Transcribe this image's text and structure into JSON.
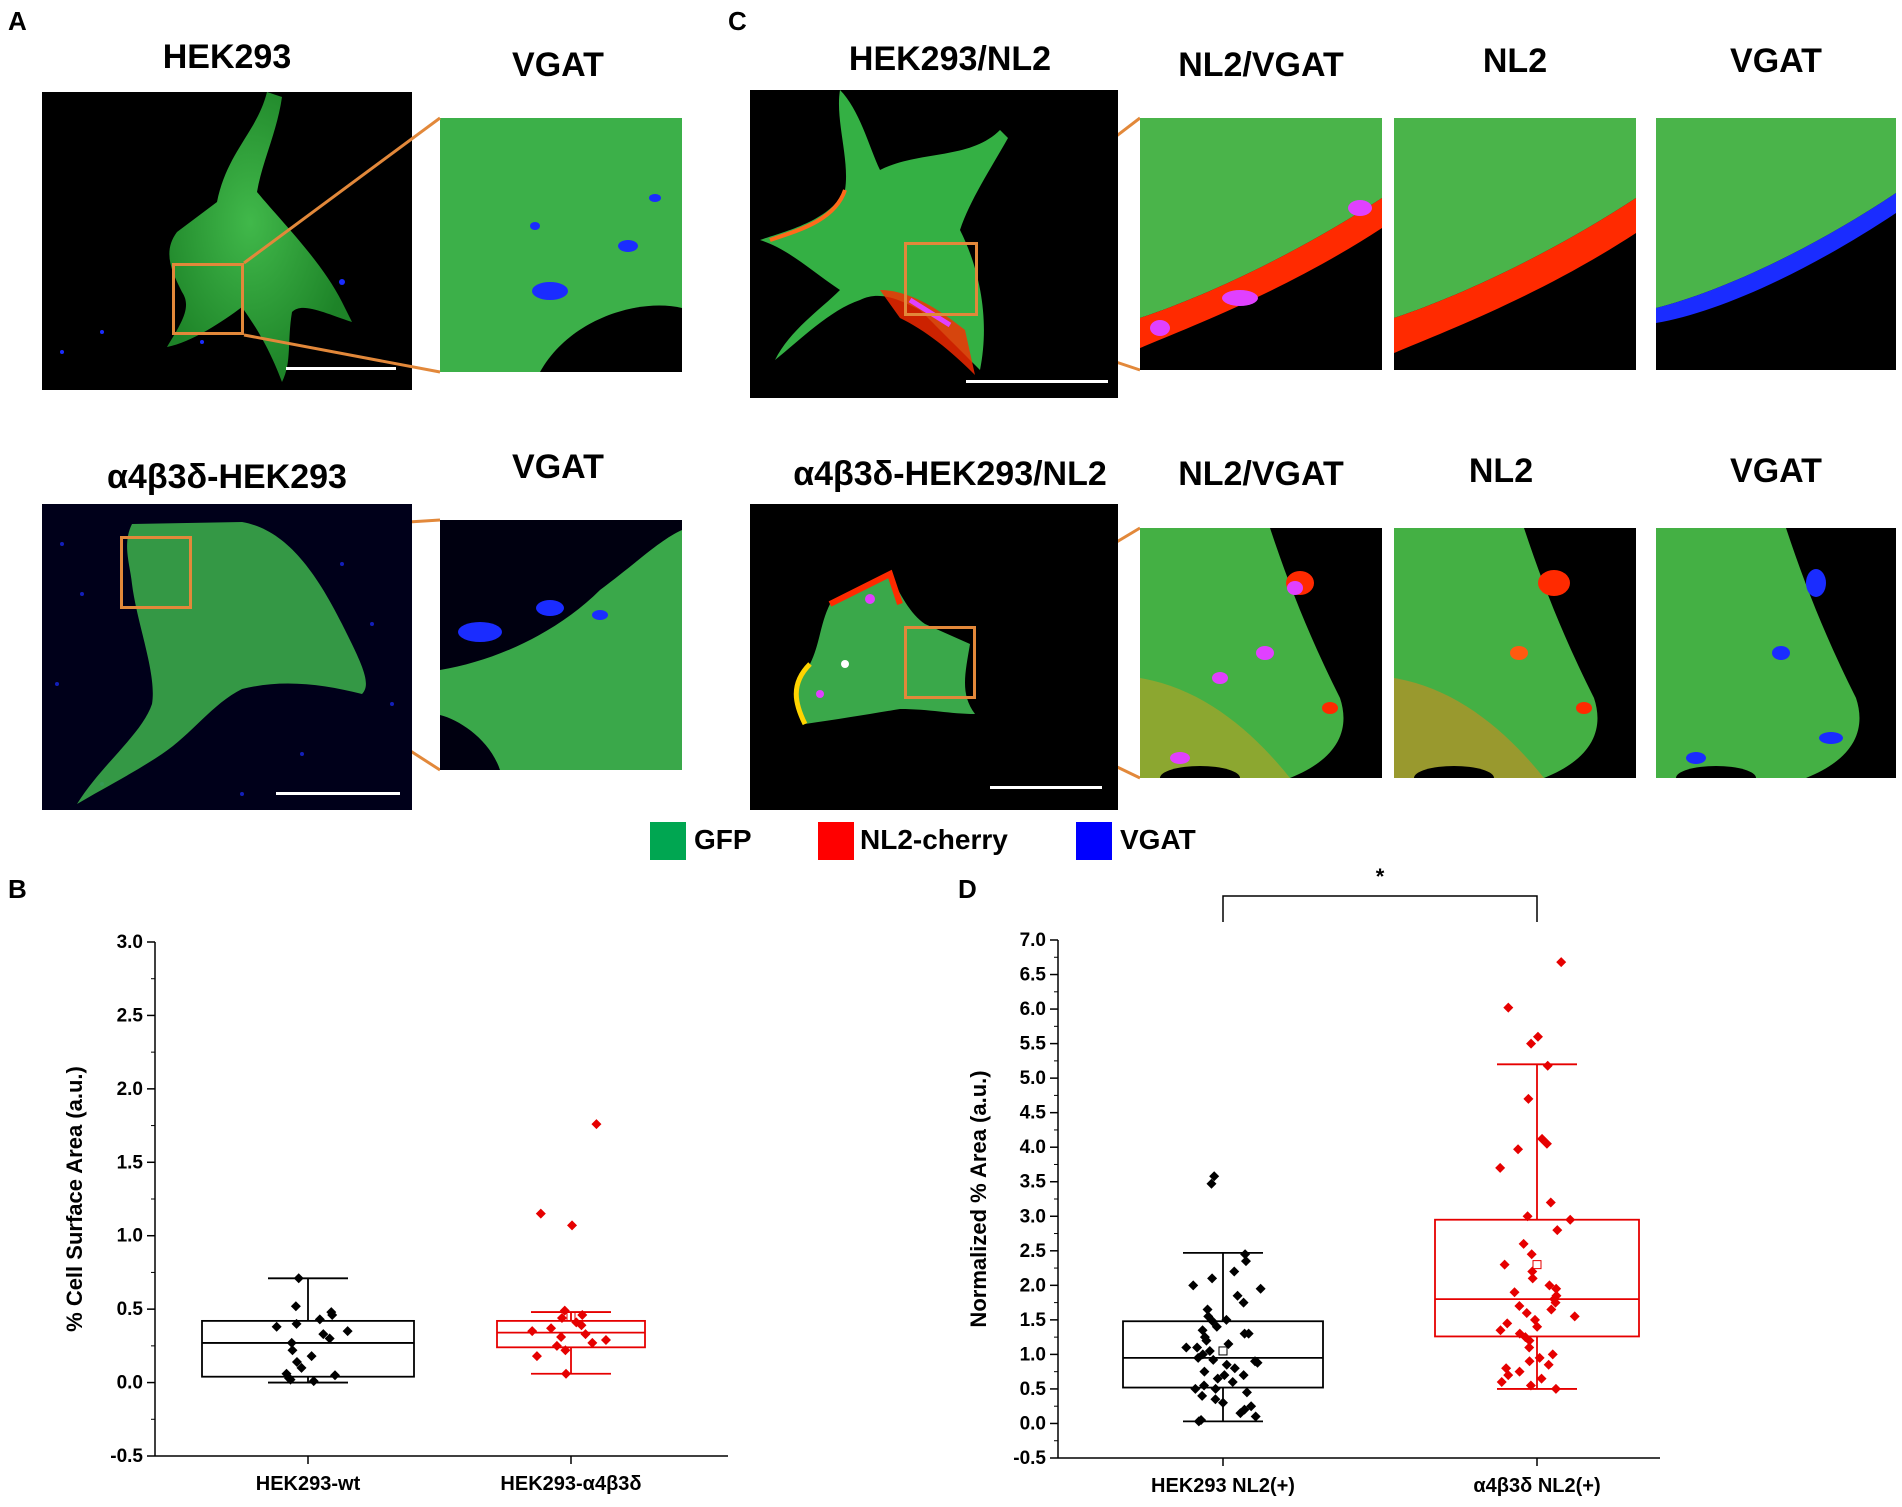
{
  "panels": {
    "A": {
      "label": "A",
      "top_title": "HEK293",
      "top_zoom_title": "VGAT",
      "bottom_title": "α4β3δ-HEK293",
      "bottom_zoom_title": "VGAT"
    },
    "C": {
      "label": "C",
      "top_title": "HEK293/NL2",
      "top_zoom_titles": [
        "NL2/VGAT",
        "NL2",
        "VGAT"
      ],
      "bottom_title": "α4β3δ-HEK293/NL2",
      "bottom_zoom_titles": [
        "NL2/VGAT",
        "NL2",
        "VGAT"
      ]
    },
    "B": {
      "label": "B"
    },
    "D": {
      "label": "D"
    }
  },
  "legend": [
    {
      "label": "GFP",
      "color": "#00a651"
    },
    {
      "label": "NL2-cherry",
      "color": "#ff0000"
    },
    {
      "label": "VGAT",
      "color": "#0000ff"
    }
  ],
  "colors": {
    "zoom_box": "#e2883a",
    "gfp": "#2fae3a",
    "nl2": "#ff2a00",
    "vgat": "#1a2cff",
    "series_black": "#000000",
    "series_red": "#e60000"
  },
  "chart_data": [
    {
      "id": "B",
      "type": "box",
      "ylabel": "% Cell Surface Area (a.u.)",
      "ylim": [
        -0.5,
        3.0
      ],
      "yticks": [
        "-0.5",
        "0.0",
        "0.5",
        "1.0",
        "1.5",
        "2.0",
        "2.5",
        "3.0"
      ],
      "categories": [
        "HEK293-wt",
        "HEK293-α4β3δ"
      ],
      "series": [
        {
          "color": "#000000",
          "box": {
            "whisker_low": 0.0,
            "q1": 0.04,
            "median": 0.27,
            "q3": 0.42,
            "whisker_high": 0.71
          },
          "points": [
            0.71,
            0.52,
            0.48,
            0.46,
            0.43,
            0.4,
            0.38,
            0.35,
            0.33,
            0.3,
            0.27,
            0.22,
            0.18,
            0.14,
            0.1,
            0.06,
            0.05,
            0.03,
            0.02,
            0.01
          ]
        },
        {
          "color": "#e60000",
          "box": {
            "whisker_low": 0.06,
            "q1": 0.24,
            "median": 0.34,
            "q3": 0.42,
            "whisker_high": 0.48
          },
          "points": [
            1.76,
            1.15,
            1.07,
            0.49,
            0.46,
            0.44,
            0.41,
            0.39,
            0.37,
            0.35,
            0.33,
            0.31,
            0.29,
            0.27,
            0.25,
            0.22,
            0.18,
            0.06
          ],
          "mean": 0.45
        }
      ]
    },
    {
      "id": "D",
      "type": "box",
      "ylabel": "Normalized % Area (a.u.)",
      "ylim": [
        -0.5,
        7.0
      ],
      "yticks": [
        "-0.5",
        "0.0",
        "0.5",
        "1.0",
        "1.5",
        "2.0",
        "2.5",
        "3.0",
        "3.5",
        "4.0",
        "4.5",
        "5.0",
        "5.5",
        "6.0",
        "6.5",
        "7.0"
      ],
      "categories": [
        "HEK293 NL2(+)",
        "α4β3δ NL2(+)"
      ],
      "significance": "*",
      "series": [
        {
          "color": "#000000",
          "box": {
            "whisker_low": 0.03,
            "q1": 0.52,
            "median": 0.95,
            "q3": 1.48,
            "whisker_high": 2.47
          },
          "points": [
            3.58,
            3.47,
            2.45,
            2.35,
            2.2,
            2.1,
            2.0,
            1.95,
            1.85,
            1.75,
            1.65,
            1.55,
            1.5,
            1.48,
            1.4,
            1.35,
            1.3,
            1.25,
            1.2,
            1.15,
            1.1,
            1.05,
            1.0,
            0.95,
            0.92,
            0.88,
            0.85,
            0.8,
            0.75,
            0.7,
            0.65,
            0.6,
            0.55,
            0.5,
            0.45,
            0.4,
            0.35,
            0.3,
            0.25,
            0.2,
            0.15,
            0.1,
            0.05,
            0.03,
            0.5,
            0.7,
            0.9,
            1.1,
            1.3
          ],
          "mean": 1.05
        },
        {
          "color": "#e60000",
          "box": {
            "whisker_low": 0.5,
            "q1": 1.26,
            "median": 1.8,
            "q3": 2.95,
            "whisker_high": 5.2
          },
          "points": [
            6.68,
            6.02,
            5.6,
            5.5,
            5.18,
            4.7,
            4.12,
            4.05,
            3.97,
            3.7,
            3.2,
            3.0,
            2.95,
            2.8,
            2.6,
            2.45,
            2.3,
            2.2,
            2.1,
            2.0,
            1.95,
            1.9,
            1.85,
            1.8,
            1.75,
            1.7,
            1.65,
            1.6,
            1.55,
            1.5,
            1.45,
            1.4,
            1.35,
            1.3,
            1.25,
            1.2,
            1.1,
            1.0,
            0.95,
            0.9,
            0.85,
            0.8,
            0.75,
            0.7,
            0.65,
            0.6,
            0.55,
            0.5
          ],
          "mean": 2.3
        }
      ]
    }
  ]
}
